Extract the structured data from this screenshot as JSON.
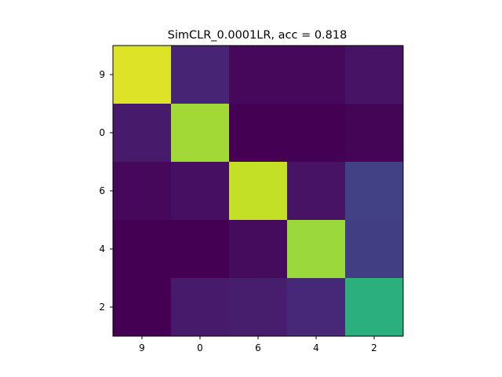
{
  "chart_data": {
    "type": "heatmap",
    "title": "SimCLR_0.0001LR, acc = 0.818",
    "xlabel": "",
    "ylabel": "",
    "x_categories": [
      "9",
      "0",
      "6",
      "4",
      "2"
    ],
    "y_categories": [
      "9",
      "0",
      "6",
      "4",
      "2"
    ],
    "values": [
      [
        0.95,
        0.1,
        0.02,
        0.02,
        0.05
      ],
      [
        0.07,
        0.86,
        0.0,
        0.0,
        0.01
      ],
      [
        0.02,
        0.04,
        0.91,
        0.05,
        0.19
      ],
      [
        0.0,
        0.0,
        0.03,
        0.85,
        0.18
      ],
      [
        0.0,
        0.07,
        0.08,
        0.11,
        0.63
      ]
    ],
    "colormap": "viridis",
    "color_range": [
      0,
      1
    ],
    "grid": false,
    "legend": "none"
  }
}
